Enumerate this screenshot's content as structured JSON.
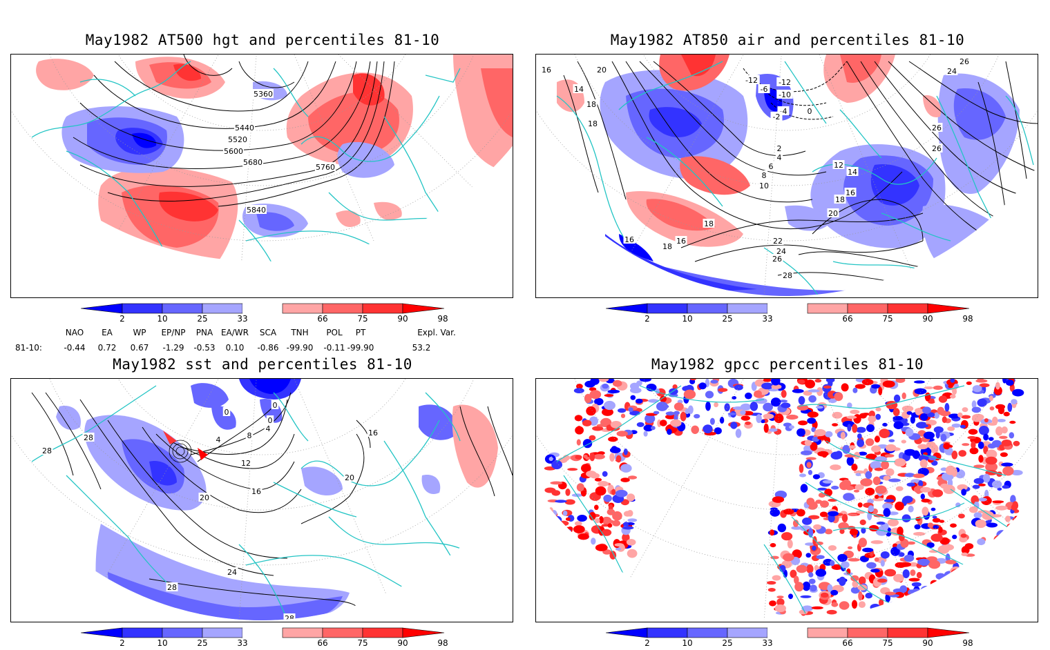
{
  "panels": [
    {
      "title": "May1982 AT500 hgt and percentiles 81-10",
      "contour_labels": [
        "5360",
        "5440",
        "5520",
        "5600",
        "5680",
        "5760",
        "5840"
      ]
    },
    {
      "title": "May1982 AT850 air and percentiles 81-10",
      "contour_labels": [
        "16",
        "20",
        "14",
        "18",
        "18",
        "-12",
        "-6",
        "-12",
        "-10",
        "-4",
        "-2",
        "0",
        "26",
        "2",
        "24",
        "26",
        "26",
        "2",
        "4",
        "6",
        "8",
        "10",
        "12",
        "14",
        "16",
        "18",
        "20",
        "22",
        "24",
        "26",
        "28",
        "16",
        "18",
        "16",
        "18"
      ]
    },
    {
      "title": "May1982 sst and percentiles 81-10",
      "contour_labels": [
        "28",
        "28",
        "0",
        "0",
        "0",
        "4",
        "4",
        "8",
        "12",
        "16",
        "20",
        "20",
        "16",
        "24",
        "28",
        "28"
      ]
    },
    {
      "title": "May1982 gpcc percentiles 81-10",
      "contour_labels": []
    }
  ],
  "colorbar": {
    "labels": [
      "2",
      "10",
      "25",
      "33",
      "66",
      "75",
      "90",
      "98"
    ],
    "colors": [
      "#0000ff",
      "#3333ff",
      "#6666ff",
      "#a5a5ff",
      "#ffffff",
      "#ffa5a5",
      "#ff6666",
      "#ff3333",
      "#ff0000"
    ]
  },
  "indices": {
    "header": [
      "NAO",
      "EA",
      "WP",
      "EP/NP",
      "PNA",
      "EA/WR",
      "SCA",
      "TNH",
      "POL",
      "PT",
      "Expl. Var."
    ],
    "row_label": "81-10:",
    "values": [
      "-0.44",
      "0.72",
      "0.67",
      "-1.29",
      "-0.53",
      "0.10",
      "-0.86",
      "-99.90",
      "-0.11",
      "-99.90",
      "53.2"
    ]
  },
  "colors": {
    "coast": "#22c4c4",
    "contour": "#000000"
  }
}
